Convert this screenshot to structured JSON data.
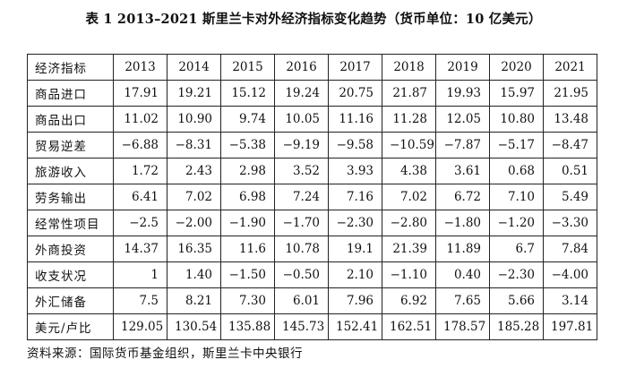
{
  "title": "表 1  2013–2021 斯里兰卡对外经济指标变化趋势（货币单位：10 亿美元）",
  "table": {
    "corner": "经济指标",
    "years": [
      "2013",
      "2014",
      "2015",
      "2016",
      "2017",
      "2018",
      "2019",
      "2020",
      "2021"
    ],
    "rows": [
      {
        "label": "商品进口",
        "values": [
          "17.91",
          "19.21",
          "15.12",
          "19.24",
          "20.75",
          "21.87",
          "19.93",
          "15.97",
          "21.95"
        ]
      },
      {
        "label": "商品出口",
        "values": [
          "11.02",
          "10.90",
          "9.74",
          "10.05",
          "11.16",
          "11.28",
          "12.05",
          "10.80",
          "13.48"
        ]
      },
      {
        "label": "贸易逆差",
        "values": [
          "−6.88",
          "−8.31",
          "−5.38",
          "−9.19",
          "−9.58",
          "−10.59",
          "−7.87",
          "−5.17",
          "−8.47"
        ]
      },
      {
        "label": "旅游收入",
        "values": [
          "1.72",
          "2.43",
          "2.98",
          "3.52",
          "3.93",
          "4.38",
          "3.61",
          "0.68",
          "0.51"
        ]
      },
      {
        "label": "劳务输出",
        "values": [
          "6.41",
          "7.02",
          "6.98",
          "7.24",
          "7.16",
          "7.02",
          "6.72",
          "7.10",
          "5.49"
        ]
      },
      {
        "label": "经常性项目",
        "values": [
          "−2.5",
          "−2.00",
          "−1.90",
          "−1.70",
          "−2.30",
          "−2.80",
          "−1.80",
          "−1.20",
          "−3.30"
        ]
      },
      {
        "label": "外商投资",
        "values": [
          "14.37",
          "16.35",
          "11.6",
          "10.78",
          "19.1",
          "21.39",
          "11.89",
          "6.7",
          "7.84"
        ]
      },
      {
        "label": "收支状况",
        "values": [
          "1",
          "1.40",
          "−1.50",
          "−0.50",
          "2.10",
          "−1.10",
          "0.40",
          "−2.30",
          "−4.00"
        ]
      },
      {
        "label": "外汇储备",
        "values": [
          "7.5",
          "8.21",
          "7.30",
          "6.01",
          "7.96",
          "6.92",
          "7.65",
          "5.66",
          "3.14"
        ]
      },
      {
        "label": "美元/卢比",
        "values": [
          "129.05",
          "130.54",
          "135.88",
          "145.73",
          "152.41",
          "162.51",
          "178.57",
          "185.28",
          "197.81"
        ]
      }
    ]
  },
  "source": "资料来源：国际货币基金组织，斯里兰卡中央银行"
}
